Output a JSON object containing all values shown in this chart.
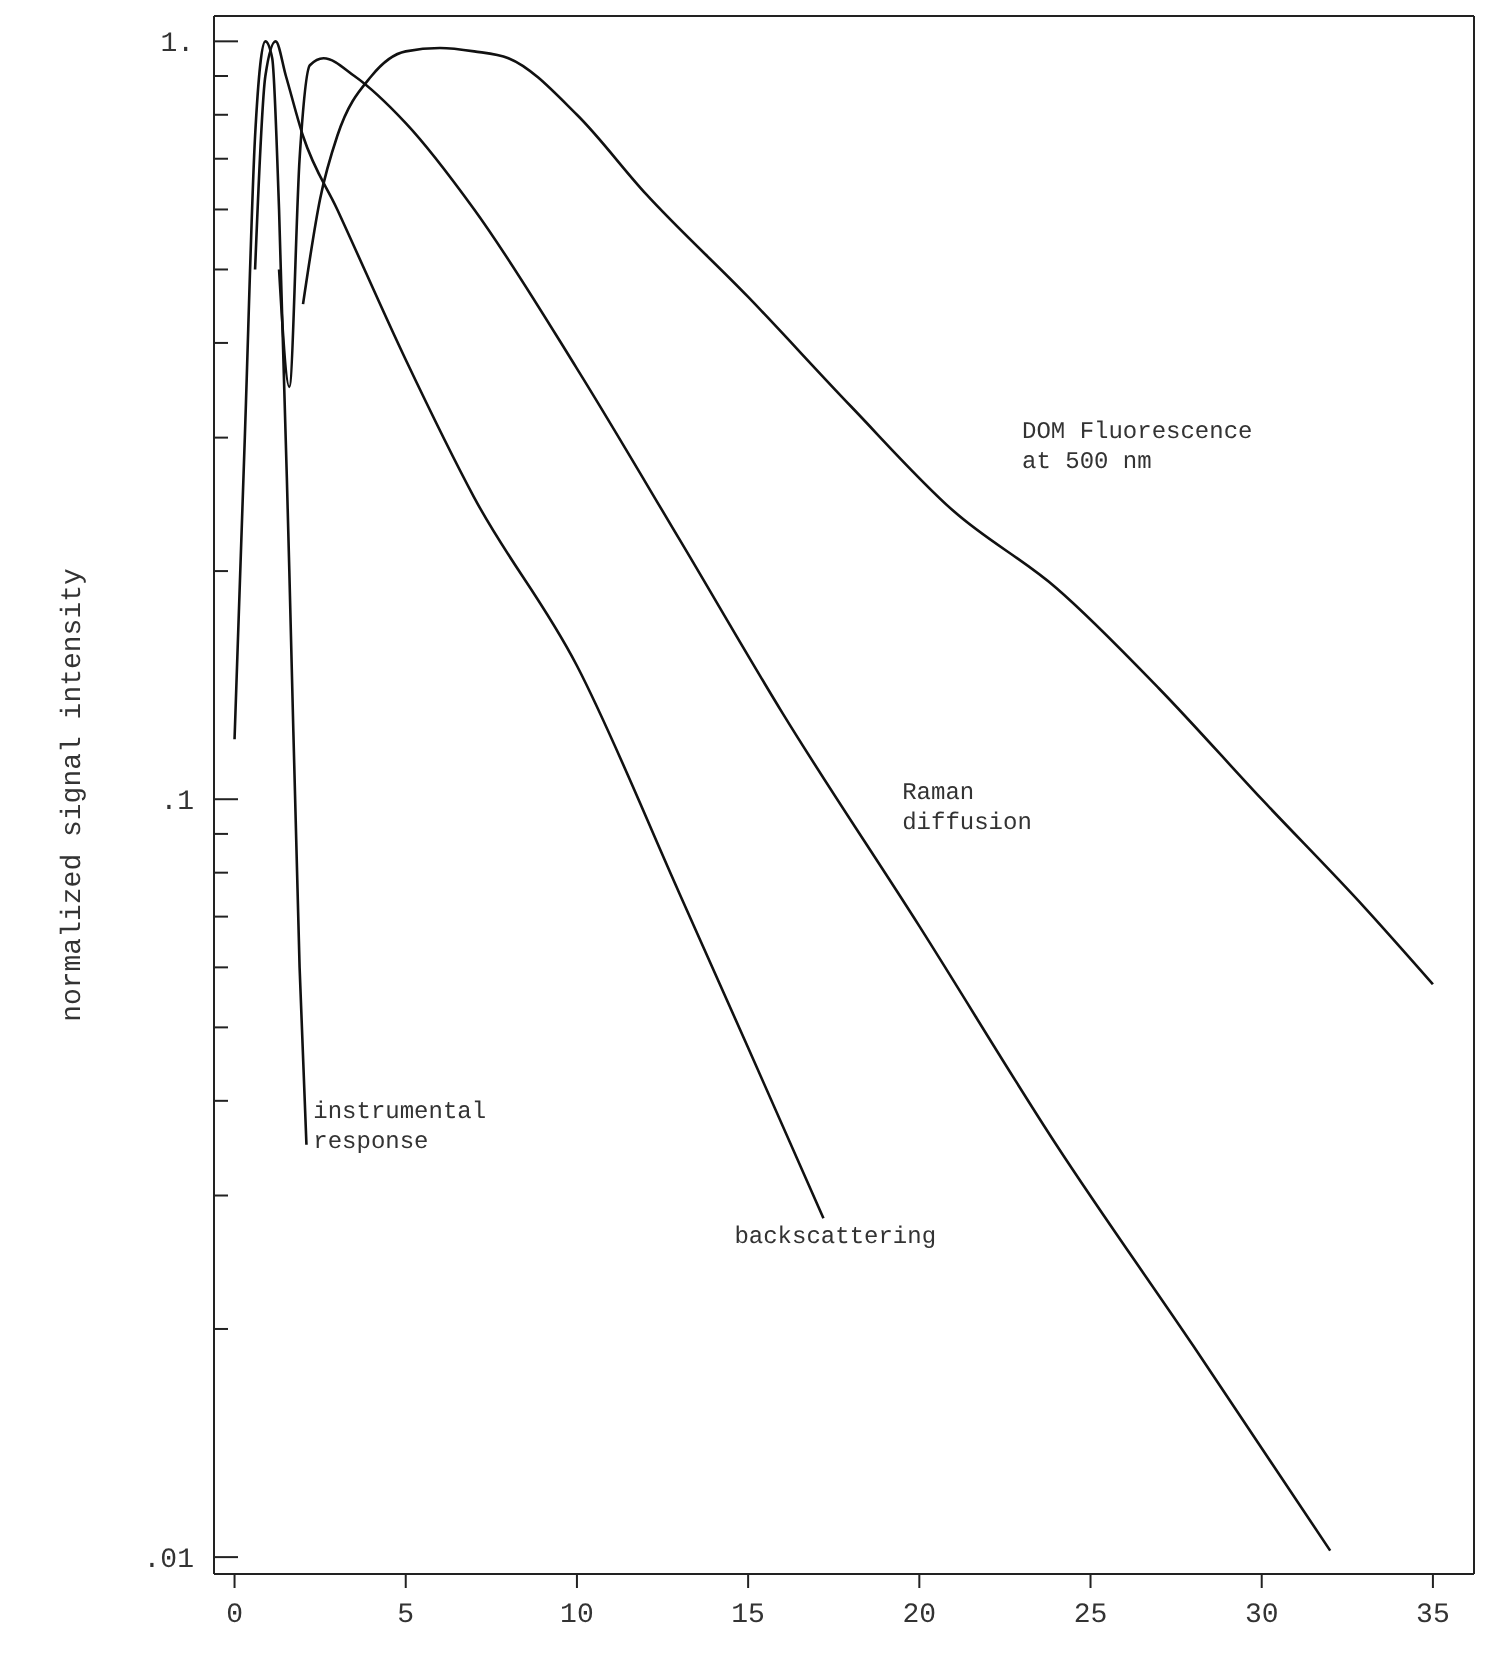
{
  "chart_data": {
    "type": "line",
    "ylabel": "normalized signal intensity",
    "log": "y",
    "xlim": [
      -0.6,
      36.2
    ],
    "ylim": [
      0.0095,
      1.08
    ],
    "xticks": [
      0,
      5,
      10,
      15,
      20,
      25,
      30,
      35
    ],
    "yticks": [
      {
        "value": 0.01,
        "label": ".01"
      },
      {
        "value": 0.02,
        "label": null
      },
      {
        "value": 0.03,
        "label": null
      },
      {
        "value": 0.04,
        "label": null
      },
      {
        "value": 0.05,
        "label": null
      },
      {
        "value": 0.06,
        "label": null
      },
      {
        "value": 0.07,
        "label": null
      },
      {
        "value": 0.08,
        "label": null
      },
      {
        "value": 0.09,
        "label": null
      },
      {
        "value": 0.1,
        "label": ".1"
      },
      {
        "value": 0.2,
        "label": null
      },
      {
        "value": 0.3,
        "label": null
      },
      {
        "value": 0.4,
        "label": null
      },
      {
        "value": 0.5,
        "label": null
      },
      {
        "value": 0.6,
        "label": null
      },
      {
        "value": 0.7,
        "label": null
      },
      {
        "value": 0.8,
        "label": null
      },
      {
        "value": 0.9,
        "label": null
      },
      {
        "value": 1,
        "label": "1."
      }
    ],
    "series": [
      {
        "name": "instrumental response",
        "color": "#111111",
        "x": [
          0,
          0.3,
          0.6,
          0.9,
          1.1,
          1.3,
          1.6,
          1.9,
          2.1
        ],
        "values": [
          0.12,
          0.3,
          0.75,
          1.0,
          0.95,
          0.6,
          0.2,
          0.06,
          0.035
        ]
      },
      {
        "name": "backscattering",
        "color": "#111111",
        "x": [
          0.6,
          0.9,
          1.2,
          1.5,
          2,
          3,
          5,
          7,
          10,
          13,
          15,
          17.2
        ],
        "values": [
          0.5,
          0.9,
          1.0,
          0.9,
          0.75,
          0.6,
          0.38,
          0.25,
          0.15,
          0.075,
          0.047,
          0.028
        ]
      },
      {
        "name": "Raman diffusion",
        "color": "#111111",
        "x": [
          1.3,
          1.6,
          1.9,
          2.2,
          2.6,
          3.5,
          5,
          7,
          10,
          13,
          16,
          20,
          24,
          28,
          32
        ],
        "values": [
          0.5,
          0.35,
          0.7,
          0.93,
          0.95,
          0.9,
          0.78,
          0.6,
          0.37,
          0.22,
          0.13,
          0.068,
          0.035,
          0.019,
          0.0102
        ]
      },
      {
        "name": "DOM Fluorescence at 500 nm",
        "color": "#111111",
        "x": [
          2,
          2.5,
          3,
          4,
          5,
          6,
          7,
          8,
          10,
          12,
          15,
          18,
          21,
          24,
          27,
          30,
          33,
          35
        ],
        "values": [
          0.45,
          0.62,
          0.75,
          0.9,
          0.97,
          0.98,
          0.97,
          0.95,
          0.8,
          0.63,
          0.46,
          0.33,
          0.24,
          0.19,
          0.14,
          0.1,
          0.072,
          0.057
        ]
      }
    ]
  }
}
